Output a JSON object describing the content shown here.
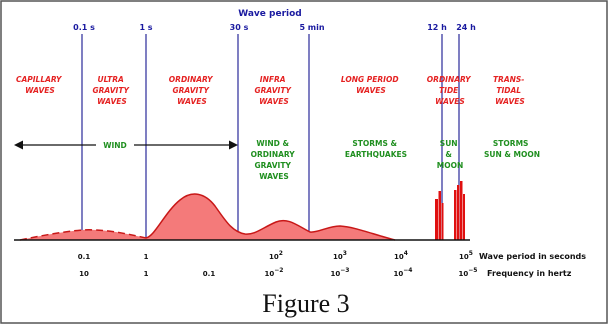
{
  "header": {
    "title": "Wave period"
  },
  "period_markers": [
    {
      "label": "0.1 s"
    },
    {
      "label": "1 s"
    },
    {
      "label": "30 s"
    },
    {
      "label": "5 min"
    },
    {
      "label": "12 h"
    },
    {
      "label": "24 h"
    }
  ],
  "wave_types": [
    {
      "lines": [
        "CAPILLARY",
        "WAVES"
      ]
    },
    {
      "lines": [
        "ULTRA",
        "GRAVITY",
        "WAVES"
      ]
    },
    {
      "lines": [
        "ORDINARY",
        "GRAVITY",
        "WAVES"
      ]
    },
    {
      "lines": [
        "INFRA",
        "GRAVITY",
        "WAVES"
      ]
    },
    {
      "lines": [
        "LONG PERIOD",
        "WAVES"
      ]
    },
    {
      "lines": [
        "ORDINARY",
        "TIDE",
        "WAVES"
      ]
    },
    {
      "lines": [
        "TRANS-",
        "TIDAL",
        "WAVES"
      ]
    }
  ],
  "forces": [
    {
      "lines": [
        "WIND"
      ]
    },
    {
      "lines": [
        "WIND &",
        "ORDINARY",
        "GRAVITY",
        "WAVES"
      ]
    },
    {
      "lines": [
        "STORMS &",
        "EARTHQUAKES"
      ]
    },
    {
      "lines": [
        "SUN",
        "&",
        "MOON"
      ]
    },
    {
      "lines": [
        "STORMS",
        "SUN & MOON"
      ]
    }
  ],
  "period_ticks": [
    {
      "base": "0.1",
      "exp": ""
    },
    {
      "base": "1",
      "exp": ""
    },
    {
      "base": "10",
      "exp": "2"
    },
    {
      "base": "10",
      "exp": "3"
    },
    {
      "base": "10",
      "exp": "4"
    },
    {
      "base": "10",
      "exp": "5"
    }
  ],
  "frequency_ticks": [
    {
      "base": "10",
      "exp": ""
    },
    {
      "base": "1",
      "exp": ""
    },
    {
      "base": "0.1",
      "exp": ""
    },
    {
      "base": "10",
      "exp": "−2"
    },
    {
      "base": "10",
      "exp": "−3"
    },
    {
      "base": "10",
      "exp": "−4"
    },
    {
      "base": "10",
      "exp": "−5"
    }
  ],
  "axis_labels": {
    "period": "Wave period in seconds",
    "frequency": "Frequency in hertz"
  },
  "caption": "Figure 3",
  "colors": {
    "wave_type_text": "#e52222",
    "force_text": "#1f8f1f",
    "marker_line": "#2a2a9a",
    "header_text": "#1a1aa0",
    "spectrum_fill": "#f47a7a",
    "spectrum_edge": "#c81818",
    "tide_bars": "#e01010"
  }
}
